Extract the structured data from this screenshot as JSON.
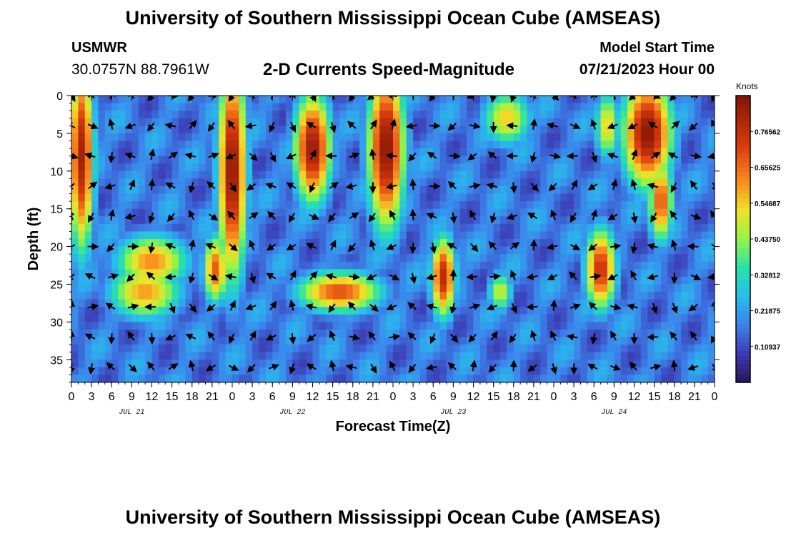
{
  "title": "University of Southern Mississippi Ocean Cube (AMSEAS)",
  "title_repeat": "University of Southern Mississippi Ocean Cube (AMSEAS)",
  "station": {
    "id": "USMWR",
    "coords": "30.0757N  88.7961W"
  },
  "model": {
    "label": "Model Start Time",
    "start": "07/21/2023 Hour 00"
  },
  "chart_data": {
    "type": "heatmap",
    "title": "2-D Currents Speed-Magnitude",
    "xlabel": "Forecast Time(Z)",
    "ylabel": "Depth (ft)",
    "x_ticks": [
      "0",
      "3",
      "6",
      "9",
      "12",
      "15",
      "18",
      "21",
      "0",
      "3",
      "6",
      "9",
      "12",
      "15",
      "18",
      "21",
      "0",
      "3",
      "6",
      "9",
      "12",
      "15",
      "18",
      "21",
      "0",
      "3",
      "6",
      "9",
      "12",
      "15",
      "18",
      "21",
      "0"
    ],
    "x_range_hours": [
      0,
      96
    ],
    "day_labels": [
      {
        "text": "JUL 21",
        "hour": 9
      },
      {
        "text": "JUL 22",
        "hour": 33
      },
      {
        "text": "JUL 23",
        "hour": 57
      },
      {
        "text": "JUL 24",
        "hour": 81
      }
    ],
    "y_ticks": [
      "0",
      "5",
      "10",
      "15",
      "20",
      "25",
      "30",
      "35"
    ],
    "y_range_ft": [
      0,
      38
    ],
    "colorbar": {
      "label": "Knots",
      "ticks": [
        "0.10937",
        "0.21875",
        "0.32812",
        "0.43750",
        "0.54687",
        "0.65625",
        "0.76562"
      ],
      "range": [
        0,
        0.875
      ]
    },
    "speed_blobs": [
      {
        "h": 1.5,
        "d": 8,
        "sh": 2.0,
        "sd": 14,
        "v": 0.82
      },
      {
        "h": 12,
        "d": 22,
        "sh": 6.0,
        "sd": 4,
        "v": 0.62
      },
      {
        "h": 11,
        "d": 26,
        "sh": 6.0,
        "sd": 4,
        "v": 0.6
      },
      {
        "h": 24,
        "d": 10,
        "sh": 2.3,
        "sd": 16,
        "v": 0.86
      },
      {
        "h": 21.5,
        "d": 23,
        "sh": 2.0,
        "sd": 5,
        "v": 0.68
      },
      {
        "h": 36,
        "d": 7,
        "sh": 3.0,
        "sd": 8,
        "v": 0.84
      },
      {
        "h": 40,
        "d": 26,
        "sh": 7.0,
        "sd": 3,
        "v": 0.7
      },
      {
        "h": 47,
        "d": 7,
        "sh": 3.0,
        "sd": 12,
        "v": 0.86
      },
      {
        "h": 55.5,
        "d": 24,
        "sh": 2.0,
        "sd": 6,
        "v": 0.78
      },
      {
        "h": 65,
        "d": 3,
        "sh": 4.0,
        "sd": 4,
        "v": 0.55
      },
      {
        "h": 64,
        "d": 26,
        "sh": 2.0,
        "sd": 3,
        "v": 0.5
      },
      {
        "h": 79,
        "d": 23,
        "sh": 2.5,
        "sd": 6,
        "v": 0.76
      },
      {
        "h": 86,
        "d": 5,
        "sh": 4.0,
        "sd": 8,
        "v": 0.86
      },
      {
        "h": 88,
        "d": 14,
        "sh": 2.0,
        "sd": 6,
        "v": 0.7
      },
      {
        "h": 80,
        "d": 4,
        "sh": 2.0,
        "sd": 5,
        "v": 0.55
      }
    ]
  }
}
